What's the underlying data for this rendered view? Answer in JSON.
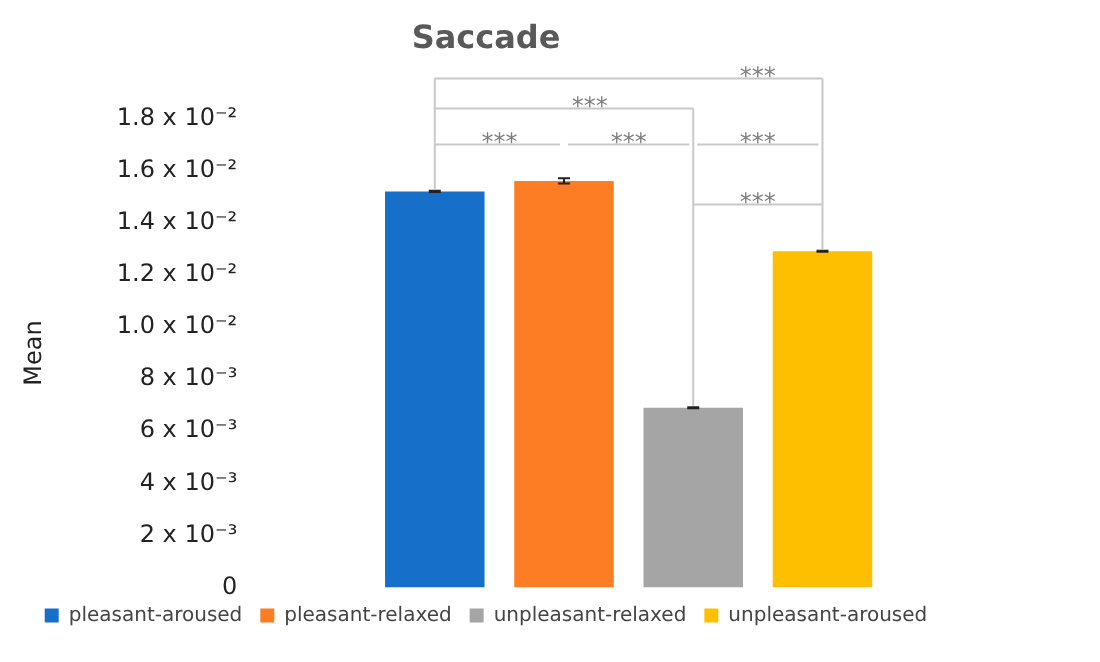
{
  "chart_data": {
    "type": "bar",
    "title": "Saccade",
    "ylabel": "Mean",
    "categories": [
      null
    ],
    "series": [
      {
        "name": "pleasant-aroused",
        "color": "#1670c9",
        "values": [
          0.0152
        ],
        "errors": [
          2e-05
        ]
      },
      {
        "name": "pleasant-relaxed",
        "color": "#fd7d24",
        "values": [
          0.0156
        ],
        "errors": [
          0.0001
        ]
      },
      {
        "name": "unpleasant-relaxed",
        "color": "#a5a5a5",
        "values": [
          0.0069
        ],
        "errors": [
          2e-05
        ]
      },
      {
        "name": "unpleasant-aroused",
        "color": "#fdbf00",
        "values": [
          0.0129
        ],
        "errors": [
          2e-05
        ]
      }
    ],
    "ylim": [
      0,
      0.018
    ],
    "yticks": [
      0,
      {
        "value": 0.002,
        "label": "2 x 10⁻³"
      },
      {
        "value": 0.004,
        "label": "4 x 10⁻³"
      },
      {
        "value": 0.006,
        "label": "6 x 10⁻³"
      },
      {
        "value": 0.008,
        "label": "8 x 10⁻³"
      },
      {
        "value": 0.01,
        "label": "1.0 x 10⁻²"
      },
      {
        "value": 0.012,
        "label": "1.2 x 10⁻²"
      },
      {
        "value": 0.014,
        "label": "1.4 x 10⁻²"
      },
      {
        "value": 0.016,
        "label": "1.6 x 10⁻²"
      },
      {
        "value": 0.018,
        "label": "1.8 x 10⁻²"
      }
    ],
    "grid": false,
    "legend": "bottom",
    "annotations": [
      "***",
      "***",
      "***",
      "***",
      "***",
      "***"
    ]
  }
}
